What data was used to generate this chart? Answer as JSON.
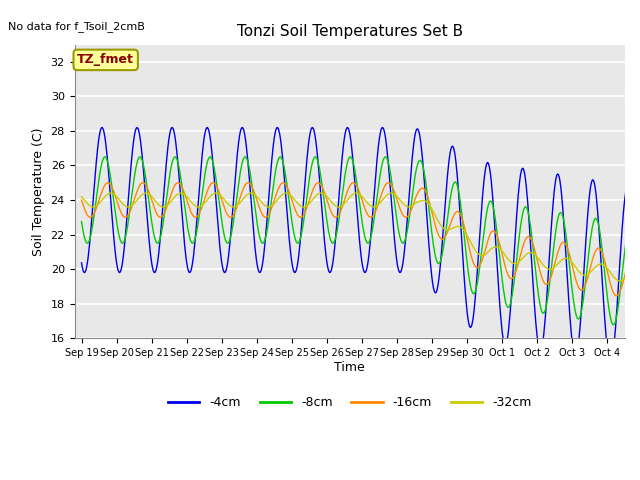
{
  "title": "Tonzi Soil Temperatures Set B",
  "ylabel": "Soil Temperature (C)",
  "xlabel": "Time",
  "no_data_text": "No data for f_Tsoil_2cmB",
  "tz_fmet_label": "TZ_fmet",
  "ylim": [
    16,
    33
  ],
  "yticks": [
    16,
    18,
    20,
    22,
    24,
    26,
    28,
    30,
    32
  ],
  "colors": {
    "-4cm": "#0000EE",
    "-8cm": "#00CC00",
    "-16cm": "#FF8800",
    "-32cm": "#CCCC00"
  },
  "bg_color": "#E8E8E8",
  "fig_bg": "#FFFFFF",
  "x_tick_labels": [
    "Sep 19",
    "Sep 20",
    "Sep 21",
    "Sep 22",
    "Sep 23",
    "Sep 24",
    "Sep 25",
    "Sep 26",
    "Sep 27",
    "Sep 28",
    "Sep 29",
    "Sep 30",
    "Oct 1",
    "Oct 2",
    "Oct 3",
    "Oct 4"
  ]
}
